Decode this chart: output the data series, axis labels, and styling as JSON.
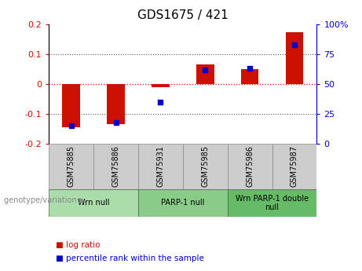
{
  "title": "GDS1675 / 421",
  "samples": [
    "GSM75885",
    "GSM75886",
    "GSM75931",
    "GSM75985",
    "GSM75986",
    "GSM75987"
  ],
  "log_ratio": [
    -0.145,
    -0.135,
    -0.01,
    0.065,
    0.05,
    0.175
  ],
  "percentile_rank": [
    15,
    18,
    35,
    62,
    63,
    83
  ],
  "ylim_left": [
    -0.2,
    0.2
  ],
  "ylim_right": [
    0,
    100
  ],
  "yticks_left": [
    -0.2,
    -0.1,
    0,
    0.1,
    0.2
  ],
  "yticks_right": [
    0,
    25,
    50,
    75,
    100
  ],
  "bar_color": "#cc1100",
  "dot_color": "#0000cc",
  "groups": [
    {
      "label": "Wrn null",
      "samples": [
        0,
        1
      ],
      "color": "#aaddaa"
    },
    {
      "label": "PARP-1 null",
      "samples": [
        2,
        3
      ],
      "color": "#88cc88"
    },
    {
      "label": "Wrn PARP-1 double\nnull",
      "samples": [
        4,
        5
      ],
      "color": "#66bb66"
    }
  ],
  "group_label_prefix": "genotype/variation",
  "legend_log_ratio": "log ratio",
  "legend_percentile": "percentile rank within the sample",
  "zero_line_color": "#cc1100",
  "dotted_line_color": "#555555",
  "background_label": "#cccccc",
  "title_fontsize": 11
}
